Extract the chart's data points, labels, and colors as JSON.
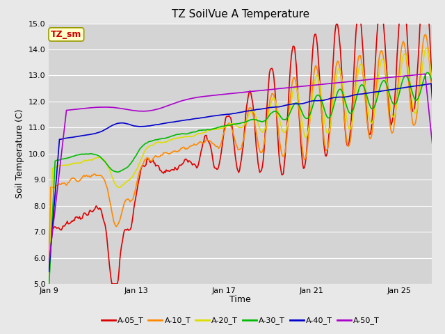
{
  "title": "TZ SoilVue A Temperature",
  "xlabel": "Time",
  "ylabel": "Soil Temperature (C)",
  "ylim": [
    5.0,
    15.0
  ],
  "yticks": [
    5.0,
    6.0,
    7.0,
    8.0,
    9.0,
    10.0,
    11.0,
    12.0,
    13.0,
    14.0,
    15.0
  ],
  "background_color": "#e8e8e8",
  "plot_bg_color": "#d4d4d4",
  "grid_color": "#ffffff",
  "series_order": [
    "A-05_T",
    "A-10_T",
    "A-20_T",
    "A-30_T",
    "A-40_T",
    "A-50_T"
  ],
  "series": {
    "A-05_T": {
      "color": "#dd0000",
      "linewidth": 1.2
    },
    "A-10_T": {
      "color": "#ff8800",
      "linewidth": 1.2
    },
    "A-20_T": {
      "color": "#dddd00",
      "linewidth": 1.2
    },
    "A-30_T": {
      "color": "#00bb00",
      "linewidth": 1.2
    },
    "A-40_T": {
      "color": "#0000cc",
      "linewidth": 1.2
    },
    "A-50_T": {
      "color": "#aa00cc",
      "linewidth": 1.2
    }
  },
  "annotation_text": "TZ_sm",
  "annotation_color": "#cc0000",
  "annotation_bg": "#ffffcc",
  "annotation_border": "#999900",
  "xtick_labels": [
    "Jan 9",
    "Jan 13",
    "Jan 17",
    "Jan 21",
    "Jan 25"
  ],
  "xtick_days": [
    9,
    13,
    17,
    21,
    25
  ],
  "title_fontsize": 11,
  "label_fontsize": 9,
  "tick_fontsize": 8,
  "legend_fontsize": 8
}
